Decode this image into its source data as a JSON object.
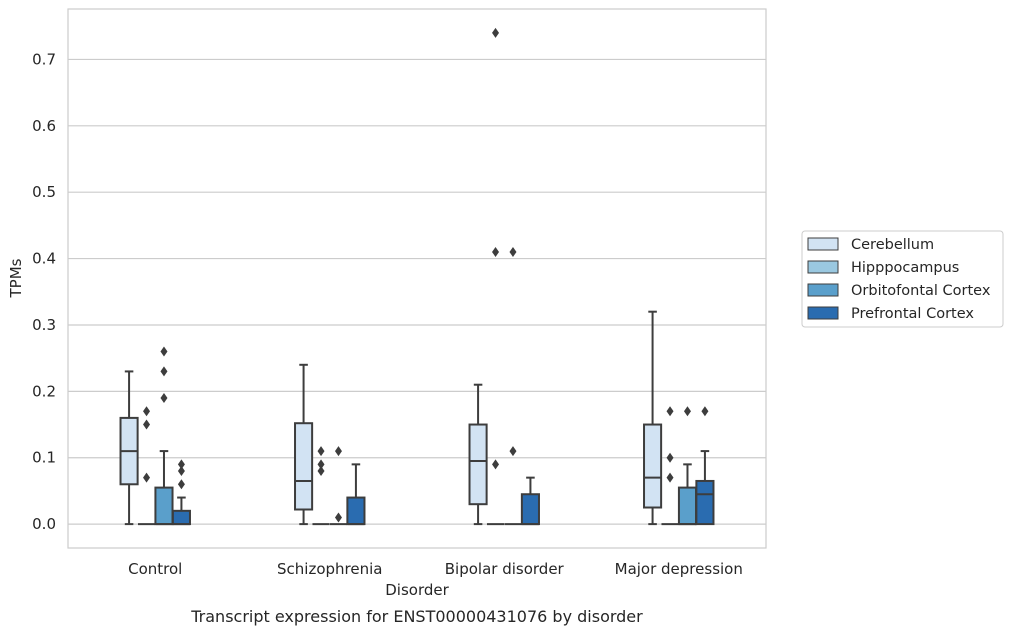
{
  "chart_data": {
    "type": "box",
    "title": "",
    "caption": "Transcript expression for ENST00000431076 by disorder",
    "xlabel": "Disorder",
    "ylabel": "TPMs",
    "ylim": [
      -0.036,
      0.776
    ],
    "yticks": [
      "0.0",
      "0.1",
      "0.2",
      "0.3",
      "0.4",
      "0.5",
      "0.6",
      "0.7"
    ],
    "grid": "horizontal",
    "legend_position": "right",
    "categories": [
      "Control",
      "Schizophrenia",
      "Bipolar disorder",
      "Major depression"
    ],
    "series": [
      {
        "name": "Cerebellum",
        "color": "#d2e3f3",
        "boxes": [
          {
            "whislo": 0.0,
            "q1": 0.06,
            "med": 0.11,
            "q3": 0.16,
            "whishi": 0.23,
            "fliers": []
          },
          {
            "whislo": 0.0,
            "q1": 0.022,
            "med": 0.065,
            "q3": 0.152,
            "whishi": 0.24,
            "fliers": []
          },
          {
            "whislo": 0.0,
            "q1": 0.03,
            "med": 0.095,
            "q3": 0.15,
            "whishi": 0.21,
            "fliers": []
          },
          {
            "whislo": 0.0,
            "q1": 0.025,
            "med": 0.07,
            "q3": 0.15,
            "whishi": 0.32,
            "fliers": []
          }
        ]
      },
      {
        "name": "Hipppocampus",
        "color": "#9ac8e0",
        "boxes": [
          {
            "whislo": 0.0,
            "q1": 0.0,
            "med": 0.0,
            "q3": 0.0,
            "whishi": 0.0,
            "fliers": [
              0.07,
              0.15,
              0.17
            ]
          },
          {
            "whislo": 0.0,
            "q1": 0.0,
            "med": 0.0,
            "q3": 0.0,
            "whishi": 0.0,
            "fliers": [
              0.08,
              0.09,
              0.11
            ]
          },
          {
            "whislo": 0.0,
            "q1": 0.0,
            "med": 0.0,
            "q3": 0.0,
            "whishi": 0.0,
            "fliers": [
              0.09,
              0.41,
              0.74
            ]
          },
          {
            "whislo": 0.0,
            "q1": 0.0,
            "med": 0.0,
            "q3": 0.0,
            "whishi": 0.0,
            "fliers": [
              0.07,
              0.1,
              0.17
            ]
          }
        ]
      },
      {
        "name": "Orbitofontal Cortex",
        "color": "#5a9fcb",
        "boxes": [
          {
            "whislo": 0.0,
            "q1": 0.0,
            "med": 0.0,
            "q3": 0.055,
            "whishi": 0.11,
            "fliers": [
              0.19,
              0.23,
              0.26
            ]
          },
          {
            "whislo": 0.0,
            "q1": 0.0,
            "med": 0.0,
            "q3": 0.0,
            "whishi": 0.0,
            "fliers": [
              0.01,
              0.11
            ]
          },
          {
            "whislo": 0.0,
            "q1": 0.0,
            "med": 0.0,
            "q3": 0.0,
            "whishi": 0.0,
            "fliers": [
              0.11,
              0.41
            ]
          },
          {
            "whislo": 0.0,
            "q1": 0.0,
            "med": 0.0,
            "q3": 0.055,
            "whishi": 0.09,
            "fliers": [
              0.17
            ]
          }
        ]
      },
      {
        "name": "Prefrontal Cortex",
        "color": "#2a6cb0",
        "boxes": [
          {
            "whislo": 0.0,
            "q1": 0.0,
            "med": 0.0,
            "q3": 0.02,
            "whishi": 0.04,
            "fliers": [
              0.06,
              0.08,
              0.09
            ]
          },
          {
            "whislo": 0.0,
            "q1": 0.0,
            "med": 0.0,
            "q3": 0.04,
            "whishi": 0.09,
            "fliers": []
          },
          {
            "whislo": 0.0,
            "q1": 0.0,
            "med": 0.0,
            "q3": 0.045,
            "whishi": 0.07,
            "fliers": []
          },
          {
            "whislo": 0.0,
            "q1": 0.0,
            "med": 0.045,
            "q3": 0.065,
            "whishi": 0.11,
            "fliers": [
              0.17
            ]
          }
        ]
      }
    ]
  }
}
